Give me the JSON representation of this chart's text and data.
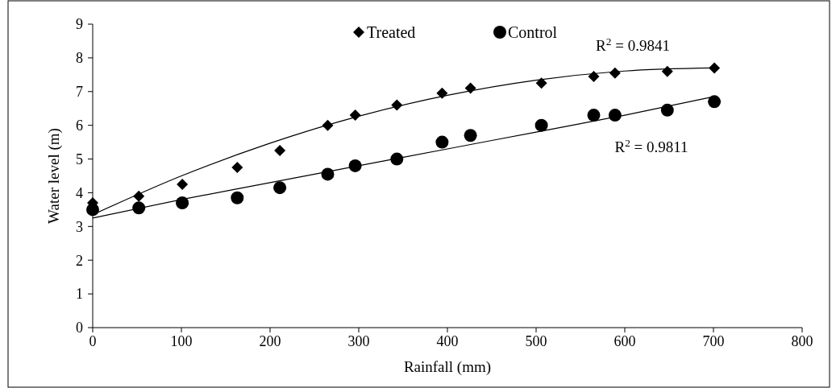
{
  "chart_data": {
    "type": "scatter",
    "xlabel": "Rainfall (mm)",
    "ylabel": "Water level (m)",
    "xlim": [
      0,
      800
    ],
    "xticks": [
      0,
      100,
      200,
      300,
      400,
      500,
      600,
      700,
      800
    ],
    "ylim": [
      0,
      9
    ],
    "yticks": [
      0,
      1,
      2,
      3,
      4,
      5,
      6,
      7,
      8,
      9
    ],
    "grid": false,
    "legend": "top",
    "x": [
      0,
      52,
      101,
      163,
      211,
      265,
      296,
      343,
      394,
      426,
      506,
      565,
      589,
      648,
      701
    ],
    "series": [
      {
        "name": "Treated",
        "color": "#000000",
        "marker": "diamond",
        "values": [
          3.7,
          3.9,
          4.25,
          4.75,
          5.25,
          6.0,
          6.3,
          6.6,
          6.95,
          7.1,
          7.25,
          7.45,
          7.55,
          7.6,
          7.7
        ]
      },
      {
        "name": "Control",
        "color": "#000000",
        "marker": "circle",
        "values": [
          3.5,
          3.55,
          3.7,
          3.85,
          4.15,
          4.55,
          4.8,
          5.0,
          5.5,
          5.7,
          6.0,
          6.3,
          6.3,
          6.45,
          6.7
        ]
      },
      {
        "type": "line",
        "color": "#000000",
        "marker": "none",
        "x": [
          0,
          100,
          200,
          300,
          400,
          500,
          600,
          700
        ],
        "values": [
          3.35,
          4.5,
          5.47,
          6.27,
          6.89,
          7.34,
          7.61,
          7.7
        ]
      },
      {
        "type": "line",
        "color": "#000000",
        "marker": "none",
        "x": [
          0,
          100,
          200,
          300,
          400,
          500,
          600,
          700
        ],
        "values": [
          3.25,
          3.8,
          4.3,
          4.8,
          5.3,
          5.8,
          6.3,
          6.85
        ]
      }
    ],
    "annotations": [
      "R$^{2}$ = 0.9841",
      "R$^{2}$ = 0.9811"
    ]
  }
}
